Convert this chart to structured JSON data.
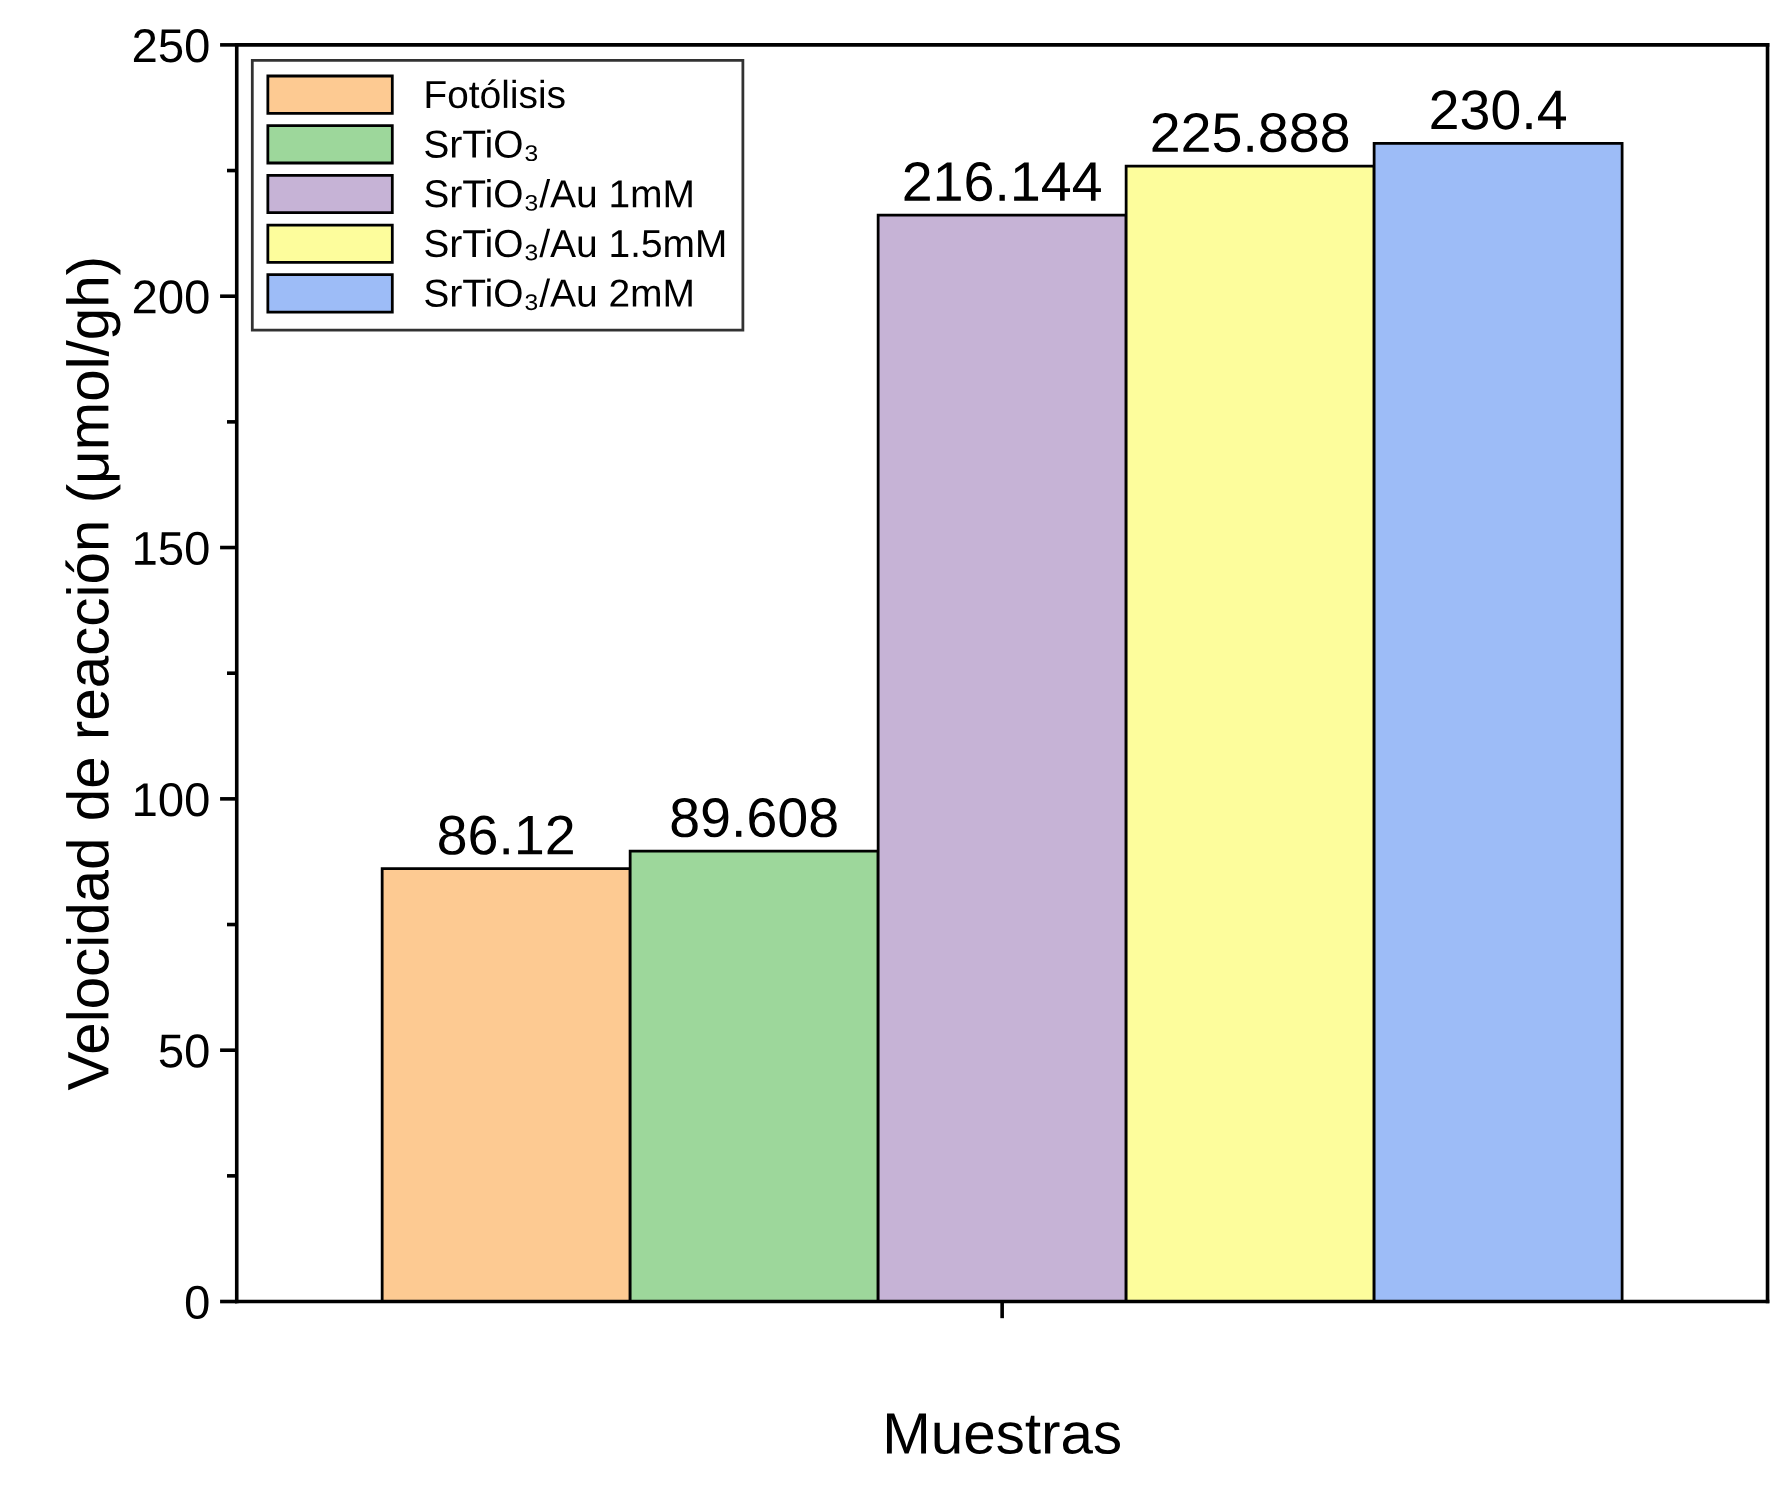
{
  "chart_data": {
    "type": "bar",
    "xlabel": "Muestras",
    "ylabel": "Velocidad de reacción (μmol/gh)",
    "categories": [
      null
    ],
    "series": [
      {
        "name": "Fotólisis",
        "color": "#fdca92",
        "values": [
          86.12
        ]
      },
      {
        "name": "SrTiO₃",
        "color": "#9dd79b",
        "values": [
          89.608
        ]
      },
      {
        "name": "SrTiO₃/Au 1mM",
        "color": "#c6b3d6",
        "values": [
          216.144
        ]
      },
      {
        "name": "SrTiO₃/Au 1.5mM",
        "color": "#fdfd9c",
        "values": [
          225.888
        ]
      },
      {
        "name": "SrTiO₃/Au 2mM",
        "color": "#9dbcf7",
        "values": [
          230.4
        ]
      }
    ],
    "ylim": [
      0,
      250
    ],
    "yticks": [
      0,
      50,
      100,
      150,
      200,
      250
    ],
    "data_labels": true,
    "legend": "top left",
    "grid": false
  }
}
